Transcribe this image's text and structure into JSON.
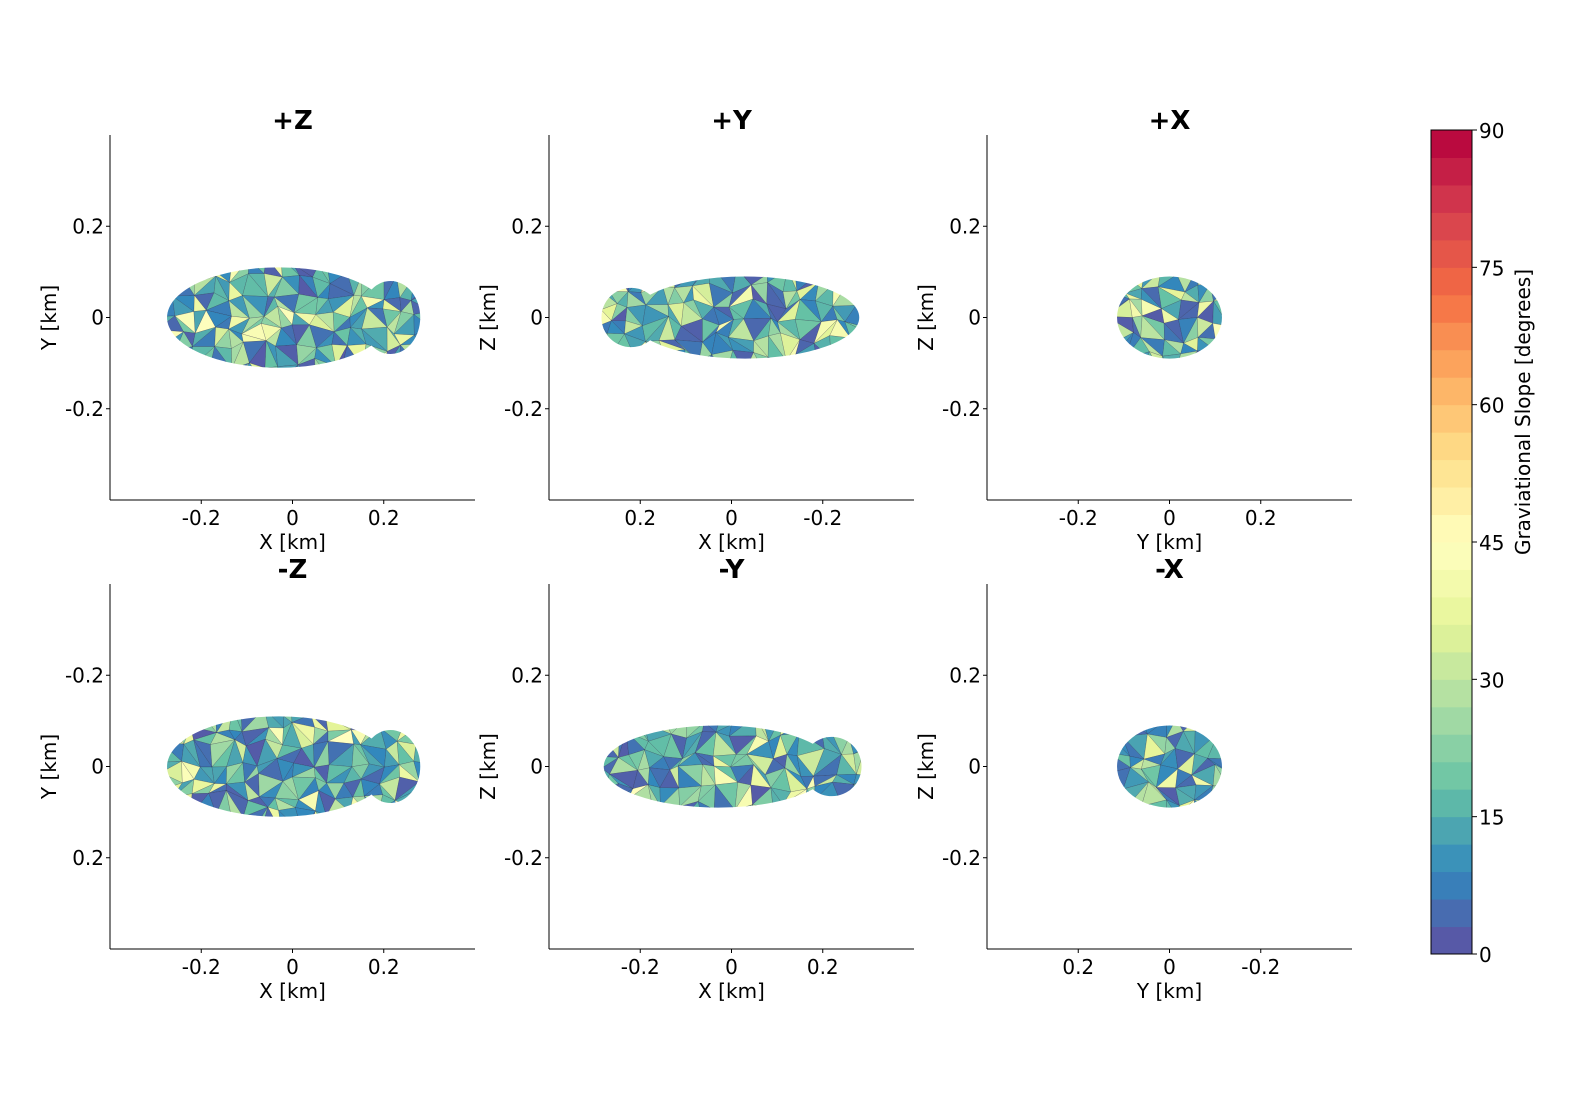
{
  "chart_data": [
    {
      "type": "surface-projection",
      "title": "+Z",
      "xlabel": "X [km]",
      "ylabel": "Y [km]",
      "xlim": [
        -0.4,
        0.4
      ],
      "ylim": [
        -0.4,
        0.4
      ],
      "x_reversed": false,
      "y_reversed": false,
      "xticks": [
        {
          "v": -0.2,
          "label": "-0.2"
        },
        {
          "v": 0,
          "label": "0"
        },
        {
          "v": 0.2,
          "label": "0.2"
        }
      ],
      "yticks": [
        {
          "v": 0.2,
          "label": "0.2"
        },
        {
          "v": 0,
          "label": "0"
        },
        {
          "v": -0.2,
          "label": "-0.2"
        }
      ],
      "shape": {
        "lobes": [
          {
            "cx": -0.03,
            "rx": 0.245,
            "ry": 0.11
          },
          {
            "cx": 0.215,
            "rx": 0.065,
            "ry": 0.08
          }
        ]
      }
    },
    {
      "type": "surface-projection",
      "title": "+Y",
      "xlabel": "X [km]",
      "ylabel": "Z [km]",
      "xlim": [
        -0.4,
        0.4
      ],
      "ylim": [
        -0.4,
        0.4
      ],
      "x_reversed": true,
      "y_reversed": false,
      "xticks": [
        {
          "v": 0.2,
          "label": "0.2"
        },
        {
          "v": 0,
          "label": "0"
        },
        {
          "v": -0.2,
          "label": "-0.2"
        }
      ],
      "yticks": [
        {
          "v": 0.2,
          "label": "0.2"
        },
        {
          "v": 0,
          "label": "0"
        },
        {
          "v": -0.2,
          "label": "-0.2"
        }
      ],
      "shape": {
        "lobes": [
          {
            "cx": -0.03,
            "rx": 0.25,
            "ry": 0.09
          },
          {
            "cx": 0.22,
            "rx": 0.065,
            "ry": 0.065
          }
        ]
      }
    },
    {
      "type": "surface-projection",
      "title": "+X",
      "xlabel": "Y [km]",
      "ylabel": "Z [km]",
      "xlim": [
        -0.4,
        0.4
      ],
      "ylim": [
        -0.4,
        0.4
      ],
      "x_reversed": false,
      "y_reversed": false,
      "xticks": [
        {
          "v": -0.2,
          "label": "-0.2"
        },
        {
          "v": 0,
          "label": "0"
        },
        {
          "v": 0.2,
          "label": "0.2"
        }
      ],
      "yticks": [
        {
          "v": 0.2,
          "label": "0.2"
        },
        {
          "v": 0,
          "label": "0"
        },
        {
          "v": -0.2,
          "label": "-0.2"
        }
      ],
      "shape": {
        "lobes": [
          {
            "cx": 0.0,
            "rx": 0.115,
            "ry": 0.09
          }
        ]
      }
    },
    {
      "type": "surface-projection",
      "title": "-Z",
      "xlabel": "X [km]",
      "ylabel": "Y [km]",
      "xlim": [
        -0.4,
        0.4
      ],
      "ylim": [
        -0.4,
        0.4
      ],
      "x_reversed": false,
      "y_reversed": true,
      "xticks": [
        {
          "v": -0.2,
          "label": "-0.2"
        },
        {
          "v": 0,
          "label": "0"
        },
        {
          "v": 0.2,
          "label": "0.2"
        }
      ],
      "yticks": [
        {
          "v": -0.2,
          "label": "-0.2"
        },
        {
          "v": 0,
          "label": "0"
        },
        {
          "v": 0.2,
          "label": "0.2"
        }
      ],
      "shape": {
        "lobes": [
          {
            "cx": -0.03,
            "rx": 0.245,
            "ry": 0.11
          },
          {
            "cx": 0.215,
            "rx": 0.065,
            "ry": 0.08
          }
        ]
      }
    },
    {
      "type": "surface-projection",
      "title": "-Y",
      "xlabel": "X [km]",
      "ylabel": "Z [km]",
      "xlim": [
        -0.4,
        0.4
      ],
      "ylim": [
        -0.4,
        0.4
      ],
      "x_reversed": false,
      "y_reversed": false,
      "xticks": [
        {
          "v": -0.2,
          "label": "-0.2"
        },
        {
          "v": 0,
          "label": "0"
        },
        {
          "v": 0.2,
          "label": "0.2"
        }
      ],
      "yticks": [
        {
          "v": 0.2,
          "label": "0.2"
        },
        {
          "v": 0,
          "label": "0"
        },
        {
          "v": -0.2,
          "label": "-0.2"
        }
      ],
      "shape": {
        "lobes": [
          {
            "cx": -0.03,
            "rx": 0.25,
            "ry": 0.09
          },
          {
            "cx": 0.22,
            "rx": 0.065,
            "ry": 0.065
          }
        ]
      }
    },
    {
      "type": "surface-projection",
      "title": "-X",
      "xlabel": "Y [km]",
      "ylabel": "Z [km]",
      "xlim": [
        -0.4,
        0.4
      ],
      "ylim": [
        -0.4,
        0.4
      ],
      "x_reversed": true,
      "y_reversed": false,
      "xticks": [
        {
          "v": 0.2,
          "label": "0.2"
        },
        {
          "v": 0,
          "label": "0"
        },
        {
          "v": -0.2,
          "label": "-0.2"
        }
      ],
      "yticks": [
        {
          "v": 0.2,
          "label": "0.2"
        },
        {
          "v": 0,
          "label": "0"
        },
        {
          "v": -0.2,
          "label": "-0.2"
        }
      ],
      "shape": {
        "lobes": [
          {
            "cx": 0.0,
            "rx": 0.115,
            "ry": 0.09
          }
        ]
      }
    }
  ],
  "colorbar": {
    "label": "Graviational Slope [degrees]",
    "range": [
      0,
      90
    ],
    "ticks": [
      {
        "v": 0,
        "label": "0"
      },
      {
        "v": 15,
        "label": "15"
      },
      {
        "v": 30,
        "label": "30"
      },
      {
        "v": 45,
        "label": "45"
      },
      {
        "v": 60,
        "label": "60"
      },
      {
        "v": 75,
        "label": "75"
      },
      {
        "v": 90,
        "label": "90"
      }
    ],
    "colormap": "Spectral_r",
    "levels": 30
  }
}
